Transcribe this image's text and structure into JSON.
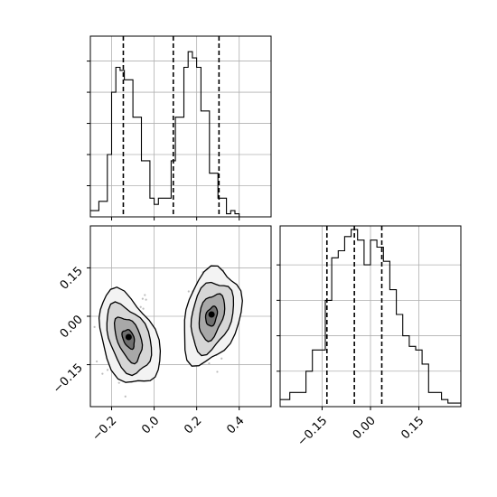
{
  "chart_data": [
    {
      "type": "histogram",
      "panel": "top-left",
      "variable": "x",
      "xlim": [
        -0.3,
        0.55
      ],
      "x_ticks": [
        -0.2,
        0.0,
        0.2,
        0.4
      ],
      "bin_edges": [
        -0.3,
        -0.26,
        -0.22,
        -0.2,
        -0.18,
        -0.16,
        -0.14,
        -0.12,
        -0.1,
        -0.08,
        -0.06,
        -0.04,
        -0.02,
        0.0,
        0.02,
        0.04,
        0.06,
        0.08,
        0.1,
        0.12,
        0.14,
        0.16,
        0.18,
        0.2,
        0.22,
        0.24,
        0.26,
        0.28,
        0.3,
        0.32,
        0.34,
        0.36,
        0.38,
        0.4,
        0.44,
        0.48,
        0.52,
        0.55
      ],
      "counts": [
        2,
        5,
        20,
        40,
        48,
        47,
        44,
        44,
        32,
        32,
        18,
        18,
        6,
        4,
        6,
        6,
        6,
        18,
        32,
        32,
        48,
        53,
        51,
        48,
        34,
        34,
        14,
        14,
        6,
        6,
        1,
        2,
        1,
        0,
        0,
        0,
        0
      ],
      "quantiles": [
        -0.145,
        0.09,
        0.305
      ],
      "y_ticks": [
        10,
        20,
        30,
        40,
        50
      ],
      "ylim": [
        0,
        58
      ],
      "grid": true
    },
    {
      "type": "contour",
      "panel": "bottom-left",
      "xlabel_ticks": [
        "-0.2",
        "0.0",
        "0.2",
        "0.4"
      ],
      "ylabel_ticks": [
        "-0.15",
        "0.00",
        "0.15"
      ],
      "xlim": [
        -0.3,
        0.55
      ],
      "ylim": [
        -0.28,
        0.28
      ],
      "x_ticks": [
        -0.2,
        0.0,
        0.2,
        0.4
      ],
      "y_ticks": [
        -0.15,
        0.0,
        0.15
      ],
      "clusters": [
        {
          "center": [
            -0.12,
            -0.07
          ],
          "levels": 4
        },
        {
          "center": [
            0.27,
            0.0
          ],
          "levels": 4
        }
      ],
      "grid": true
    },
    {
      "type": "histogram",
      "panel": "bottom-right",
      "variable": "y",
      "xlim": [
        -0.28,
        0.28
      ],
      "x_ticks": [
        -0.15,
        0.0,
        0.15
      ],
      "x_tick_labels": [
        "-0.15",
        "0.00",
        "0.15"
      ],
      "bin_edges": [
        -0.28,
        -0.25,
        -0.22,
        -0.2,
        -0.18,
        -0.16,
        -0.14,
        -0.12,
        -0.1,
        -0.08,
        -0.06,
        -0.04,
        -0.02,
        0.0,
        0.02,
        0.04,
        0.06,
        0.08,
        0.1,
        0.12,
        0.14,
        0.16,
        0.18,
        0.2,
        0.22,
        0.24,
        0.26,
        0.28
      ],
      "counts": [
        2,
        4,
        4,
        10,
        16,
        16,
        30,
        42,
        44,
        48,
        50,
        47,
        40,
        47,
        45,
        41,
        33,
        26,
        20,
        17,
        16,
        12,
        4,
        4,
        2,
        1,
        1
      ],
      "quantiles": [
        -0.135,
        -0.05,
        0.035
      ],
      "y_ticks": [
        10,
        20,
        30,
        40
      ],
      "ylim": [
        0,
        51
      ],
      "grid": true
    }
  ]
}
